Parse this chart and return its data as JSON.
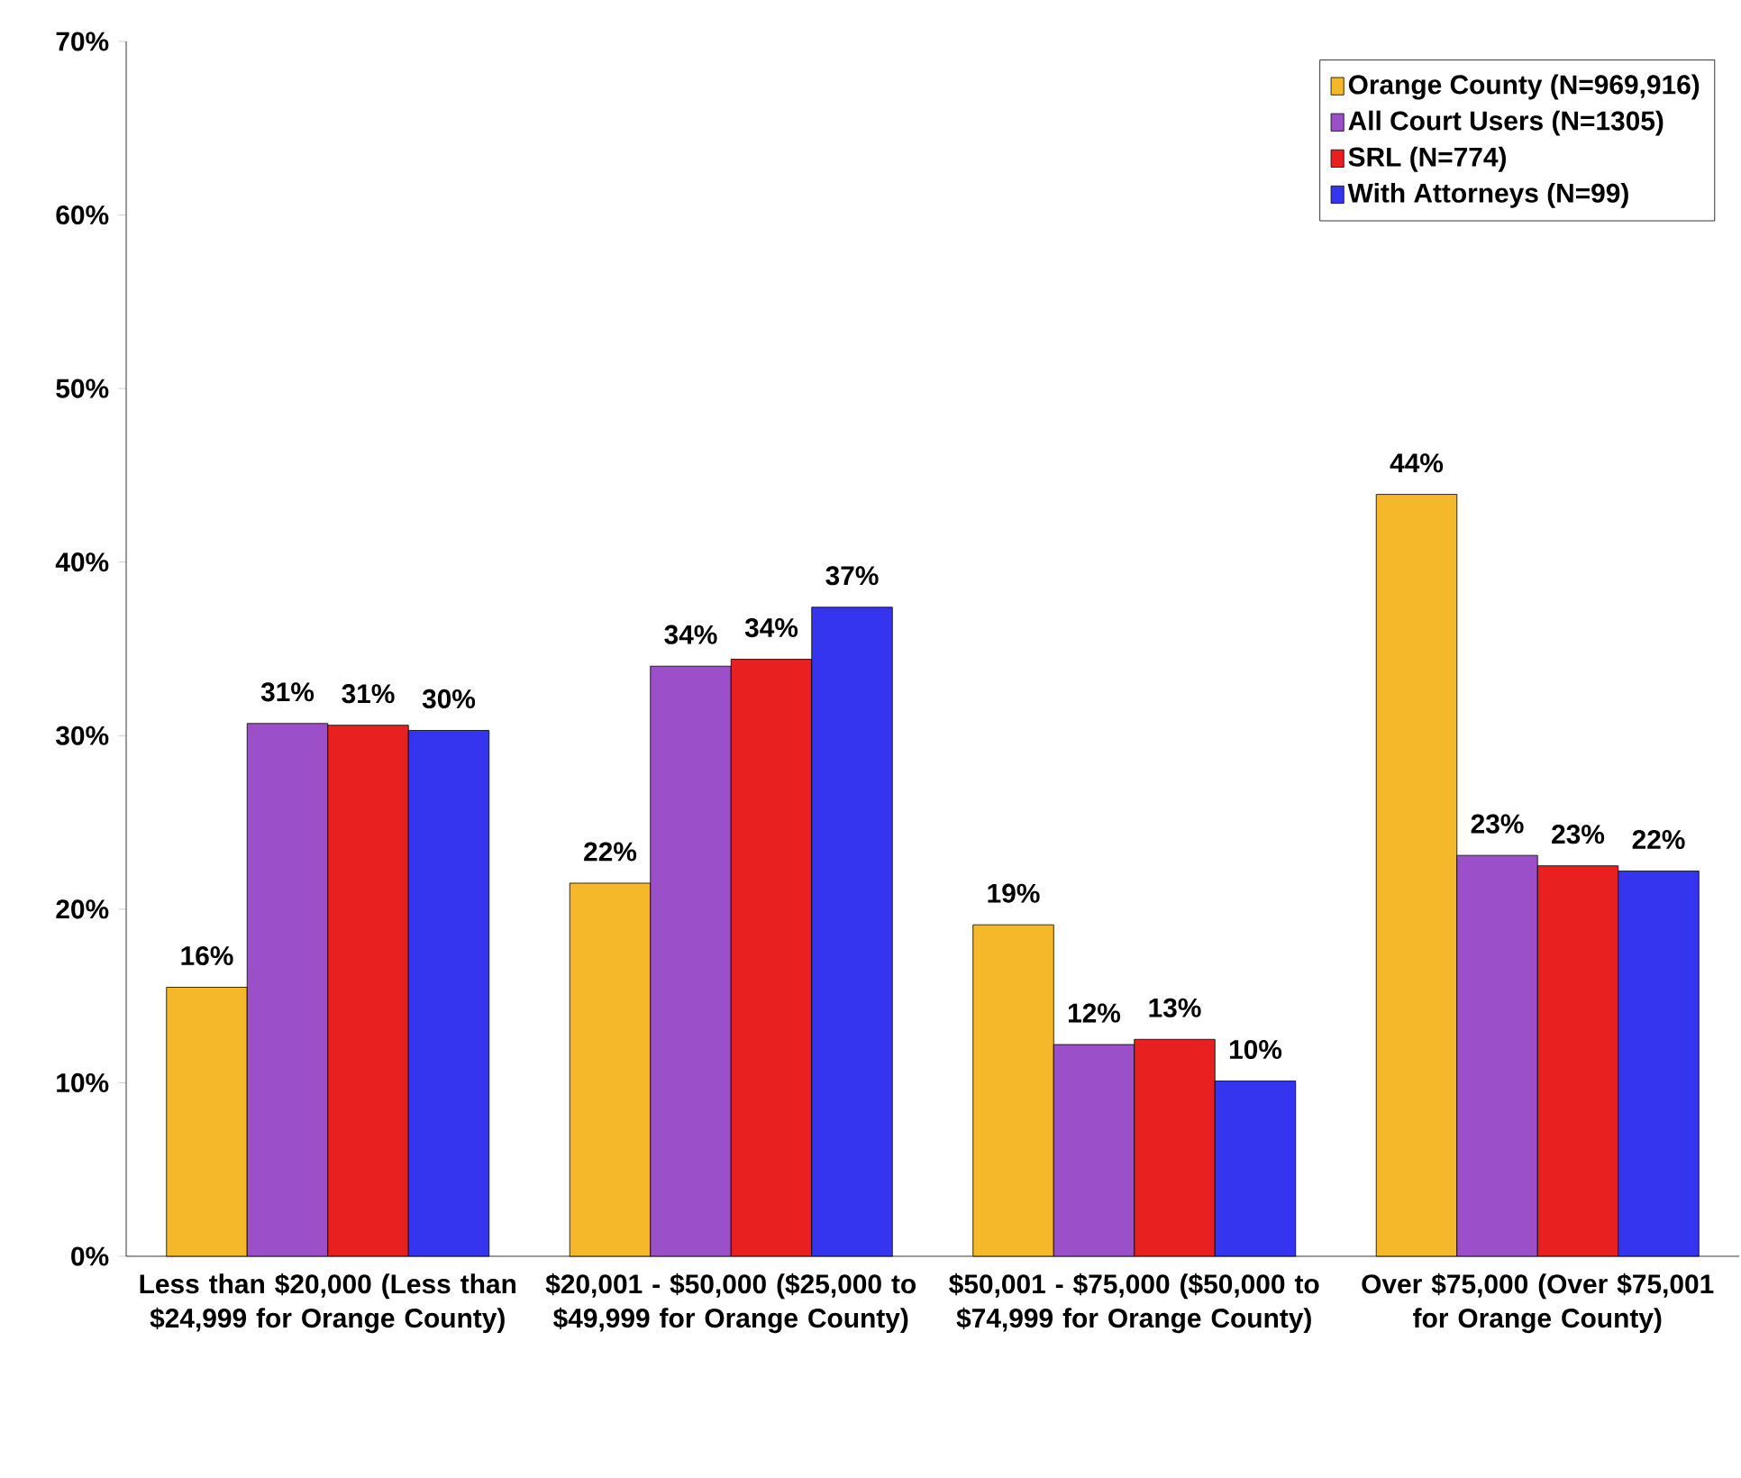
{
  "chart_data": {
    "type": "bar",
    "categories": [
      "Less than $20,000 (Less than $24,999 for Orange County)",
      "$20,001 - $50,000 ($25,000 to $49,999 for Orange County)",
      "$50,001 - $75,000 ($50,000 to $74,999 for Orange County)",
      "Over $75,000 (Over $75,001 for Orange County)"
    ],
    "series": [
      {
        "name": "Orange County (N=969,916)",
        "color": "#f5b82a",
        "values": [
          15.5,
          21.5,
          19.1,
          43.9
        ],
        "value_labels": [
          "16%",
          "22%",
          "19%",
          "44%"
        ]
      },
      {
        "name": "All Court Users (N=1305)",
        "color": "#9b4fc8",
        "values": [
          30.7,
          34.0,
          12.2,
          23.1
        ],
        "value_labels": [
          "31%",
          "34%",
          "12%",
          "23%"
        ]
      },
      {
        "name": "SRL (N=774)",
        "color": "#e82020",
        "values": [
          30.6,
          34.4,
          12.5,
          22.5
        ],
        "value_labels": [
          "31%",
          "34%",
          "13%",
          "23%"
        ]
      },
      {
        "name": "With Attorneys (N=99)",
        "color": "#3535f0",
        "values": [
          30.3,
          37.4,
          10.1,
          22.2
        ],
        "value_labels": [
          "30%",
          "37%",
          "10%",
          "22%"
        ]
      }
    ],
    "ylim": [
      0,
      70
    ],
    "yticks": [
      {
        "value": 0,
        "label": "0%"
      },
      {
        "value": 10,
        "label": "10%"
      },
      {
        "value": 20,
        "label": "20%"
      },
      {
        "value": 30,
        "label": "30%"
      },
      {
        "value": 40,
        "label": "40%"
      },
      {
        "value": 50,
        "label": "50%"
      },
      {
        "value": 60,
        "label": "60%"
      },
      {
        "value": 70,
        "label": "70%"
      }
    ],
    "grid": false,
    "legend": "top right"
  }
}
